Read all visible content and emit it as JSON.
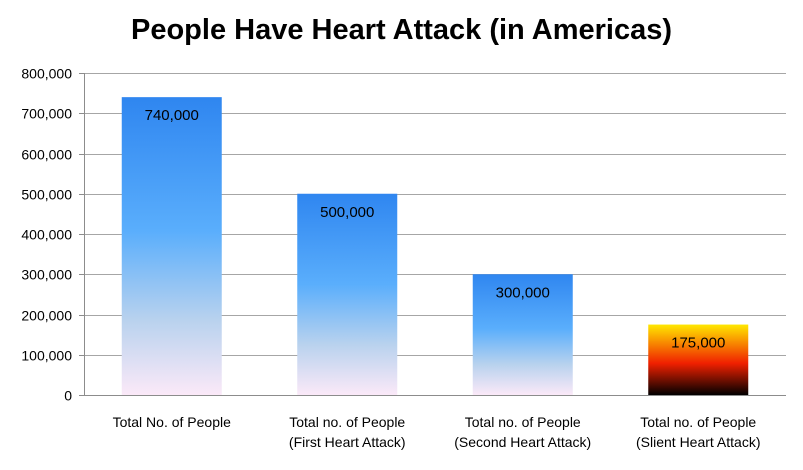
{
  "chart_data": {
    "type": "bar",
    "title": "People Have Heart Attack (in Americas)",
    "categories": [
      [
        "Total No. of People"
      ],
      [
        "Total no. of People",
        "(First Heart Attack)"
      ],
      [
        "Total no. of People",
        "(Second Heart Attack)"
      ],
      [
        "Total no. of People",
        "(Slient Heart Attack)"
      ]
    ],
    "values": [
      740000,
      500000,
      300000,
      175000
    ],
    "data_labels": [
      "740,000",
      "500,000",
      "300,000",
      "175,000"
    ],
    "y_ticks": [
      "0",
      "100,000",
      "200,000",
      "300,000",
      "400,000",
      "500,000",
      "600,000",
      "700,000",
      "800,000"
    ],
    "ylim": [
      0,
      800000
    ],
    "grid": true,
    "legend": "none",
    "bar_fills": [
      "blue-gradient",
      "blue-gradient",
      "blue-gradient",
      "fire-gradient"
    ],
    "colors": {
      "blue_top": "#2f86f0",
      "blue_mid": "#5aaefc",
      "blue_low": "#b9d2ee",
      "blue_bottom": "#fbe9f8",
      "fire_top": "#ffe800",
      "fire_mid": "#f02000",
      "fire_bottom": "#000000",
      "grid": "#a6a6a6",
      "axis": "#8c8c8c"
    }
  }
}
